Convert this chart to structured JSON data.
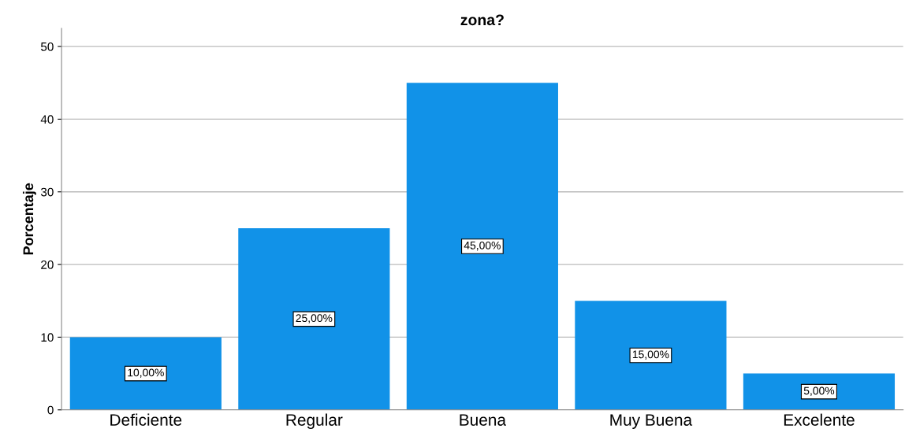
{
  "chart_data": {
    "type": "bar",
    "title": "zona?",
    "ylabel": "Porcentaje",
    "categories": [
      "Deficiente",
      "Regular",
      "Buena",
      "Muy Buena",
      "Excelente"
    ],
    "values": [
      10,
      25,
      45,
      15,
      5
    ],
    "value_labels": [
      "10,00%",
      "25,00%",
      "45,00%",
      "15,00%",
      "5,00%"
    ],
    "color": "#1192e8",
    "ylim": [
      0,
      52.5
    ],
    "yticks": [
      0,
      10,
      20,
      30,
      40,
      50
    ],
    "grid": "y",
    "legend": false
  }
}
